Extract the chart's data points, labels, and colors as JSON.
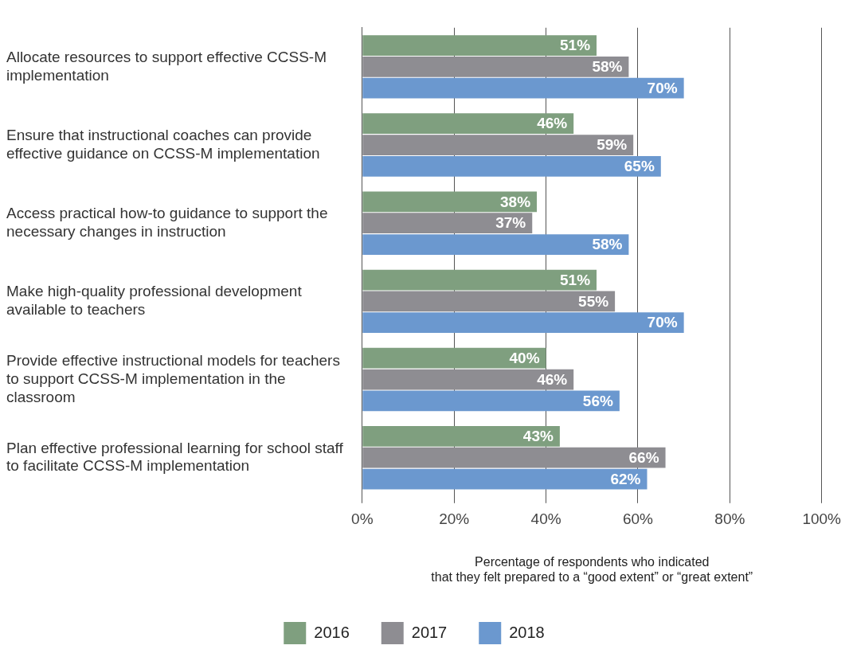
{
  "chart_data": {
    "type": "bar",
    "orientation": "horizontal",
    "categories": [
      "Allocate resources to support effective CCSS-M implementation",
      "Ensure that instructional coaches can provide effective guidance on CCSS-M implementation",
      "Access practical how-to guidance to support the necessary changes in instruction",
      "Make high-quality professional development available to teachers",
      "Provide effective instructional models for teachers to support CCSS-M implementation in the classroom",
      "Plan effective professional learning for school staff to facilitate CCSS-M implementation"
    ],
    "series": [
      {
        "name": "2016",
        "color": "#7f9f7f",
        "values": [
          51,
          46,
          38,
          51,
          40,
          43
        ],
        "value_labels": [
          "51%",
          "46%",
          "38%",
          "51%",
          "40%",
          "43%"
        ]
      },
      {
        "name": "2017",
        "color": "#8e8d92",
        "values": [
          58,
          59,
          37,
          55,
          46,
          66
        ],
        "value_labels": [
          "58%",
          "59%",
          "37%",
          "55%",
          "46%",
          "66%"
        ]
      },
      {
        "name": "2018",
        "color": "#6b98cf",
        "values": [
          70,
          65,
          58,
          70,
          56,
          62
        ],
        "value_labels": [
          "70%",
          "65%",
          "58%",
          "70%",
          "56%",
          "62%"
        ]
      }
    ],
    "xlabel": "Percentage of respondents who indicated\nthat they felt prepared to a “good extent” or “great extent”",
    "xlim": [
      0,
      100
    ],
    "xticks": [
      {
        "value": 0,
        "label": "0%"
      },
      {
        "value": 20,
        "label": "20%"
      },
      {
        "value": 40,
        "label": "40%"
      },
      {
        "value": 60,
        "label": "60%"
      },
      {
        "value": 80,
        "label": "80%"
      },
      {
        "value": 100,
        "label": "100%"
      }
    ],
    "grid": "x",
    "legend": "bottom"
  }
}
